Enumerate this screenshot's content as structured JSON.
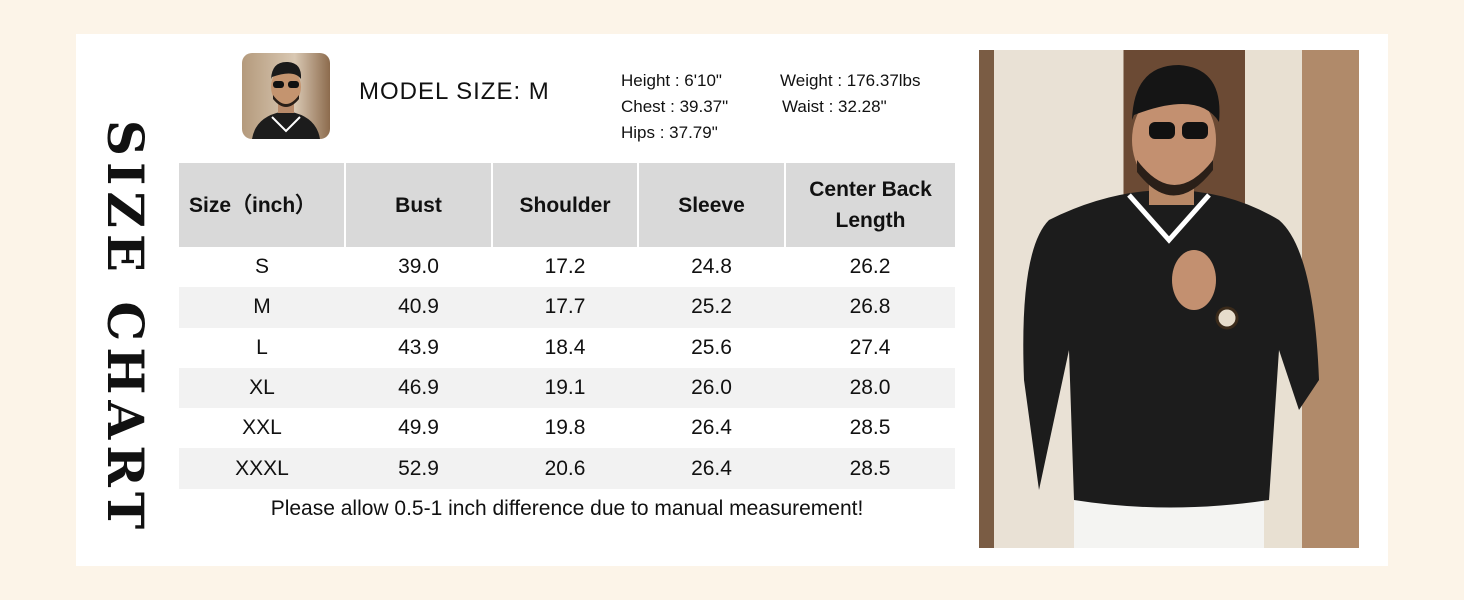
{
  "title": "SIZE CHART",
  "model": {
    "label": "MODEL SIZE: M",
    "height": "Height : 6'10\"",
    "weight": "Weight : 176.37lbs",
    "chest": "Chest : 39.37\"",
    "waist": "Waist : 32.28\"",
    "hips": "Hips : 37.79\""
  },
  "table": {
    "headers": [
      "Size（inch）",
      "Bust",
      "Shoulder",
      "Sleeve",
      "Center Back Length"
    ],
    "rows": [
      [
        "S",
        "39.0",
        "17.2",
        "24.8",
        "26.2"
      ],
      [
        "M",
        "40.9",
        "17.7",
        "25.2",
        "26.8"
      ],
      [
        "L",
        "43.9",
        "18.4",
        "25.6",
        "27.4"
      ],
      [
        "XL",
        "46.9",
        "19.1",
        "26.0",
        "28.0"
      ],
      [
        "XXL",
        "49.9",
        "19.8",
        "26.4",
        "28.5"
      ],
      [
        "XXXL",
        "52.9",
        "20.6",
        "26.4",
        "28.5"
      ]
    ]
  },
  "note": "Please allow 0.5-1 inch difference due to manual measurement!",
  "colors": {
    "background": "#fcf4e8",
    "header": "#d9d9d9",
    "alt_row": "#f2f2f2",
    "shirt": "#1c1c1c"
  }
}
